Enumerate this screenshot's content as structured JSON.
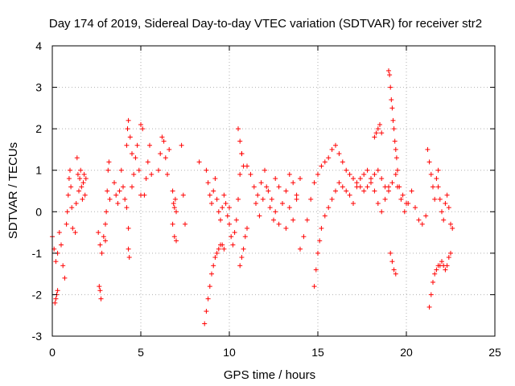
{
  "chart_data": {
    "type": "scatter",
    "title": "Day 174 of 2019, Sidereal Day-to-day VTEC variation (SDTVAR) for receiver str2",
    "xlabel": "GPS time / hours",
    "ylabel": "SDTVAR / TECUs",
    "xlim": [
      0,
      25
    ],
    "ylim": [
      -3,
      4
    ],
    "x_ticks": [
      "0",
      "5",
      "10",
      "15",
      "20",
      "25"
    ],
    "y_ticks": [
      "-3",
      "-2",
      "-1",
      "0",
      "1",
      "2",
      "3",
      "4"
    ],
    "grid": true,
    "marker": "+",
    "color": "#ff0000",
    "series": [
      {
        "name": "SDTVAR",
        "segments": [
          {
            "x": [
              0.0,
              0.1,
              0.2,
              0.3,
              0.4,
              0.5,
              0.6,
              0.7
            ],
            "y": [
              -0.6,
              -0.9,
              -1.2,
              -1.0,
              -0.5,
              -0.8,
              -1.3,
              -1.6
            ]
          },
          {
            "x": [
              0.15,
              0.2,
              0.25,
              0.3
            ],
            "y": [
              -2.2,
              -2.1,
              -2.0,
              -1.9
            ]
          },
          {
            "x": [
              0.8,
              0.85,
              0.9,
              0.95,
              1.0,
              1.05,
              1.1,
              1.15
            ],
            "y": [
              -0.3,
              0.0,
              0.4,
              0.8,
              1.0,
              0.6,
              0.1,
              -0.4
            ]
          },
          {
            "x": [
              1.3,
              1.35,
              1.4,
              1.45,
              1.5,
              1.55,
              1.6,
              1.65,
              1.7,
              1.75,
              1.8,
              1.85,
              1.9
            ],
            "y": [
              -0.5,
              0.2,
              1.3,
              0.9,
              0.5,
              0.8,
              1.0,
              0.6,
              0.3,
              0.7,
              0.9,
              0.4,
              0.8
            ]
          },
          {
            "x": [
              2.6,
              2.7,
              2.8,
              2.9,
              3.0
            ],
            "y": [
              -0.5,
              -0.8,
              -1.0,
              -0.6,
              -0.3
            ]
          },
          {
            "x": [
              2.65,
              2.7,
              2.75
            ],
            "y": [
              -1.8,
              -1.9,
              -2.1
            ]
          },
          {
            "x": [
              3.0,
              3.05,
              3.1,
              3.15,
              3.2,
              3.25
            ],
            "y": [
              -0.7,
              0.0,
              0.5,
              1.0,
              1.2,
              0.3
            ]
          },
          {
            "x": [
              3.5,
              3.6,
              3.7,
              3.8,
              3.9,
              4.0,
              4.1,
              4.2,
              4.3
            ],
            "y": [
              0.7,
              0.4,
              0.2,
              0.5,
              1.0,
              0.6,
              0.3,
              0.1,
              -0.4
            ]
          },
          {
            "x": [
              4.2,
              4.25,
              4.3,
              4.4,
              4.5
            ],
            "y": [
              1.6,
              2.0,
              2.2,
              1.8,
              1.4
            ]
          },
          {
            "x": [
              4.3,
              4.35
            ],
            "y": [
              -0.9,
              -1.1
            ]
          },
          {
            "x": [
              4.5,
              4.6,
              4.7,
              4.8,
              4.9,
              5.0
            ],
            "y": [
              0.6,
              0.9,
              1.3,
              1.6,
              1.0,
              0.4
            ]
          },
          {
            "x": [
              5.0,
              5.1
            ],
            "y": [
              2.1,
              2.0
            ]
          },
          {
            "x": [
              5.2,
              5.3,
              5.4,
              5.5,
              5.6
            ],
            "y": [
              0.4,
              0.8,
              1.2,
              1.6,
              0.9
            ]
          },
          {
            "x": [
              6.0,
              6.1,
              6.2,
              6.3,
              6.4,
              6.5,
              6.6
            ],
            "y": [
              1.0,
              1.4,
              1.8,
              1.7,
              1.3,
              0.9,
              1.5
            ]
          },
          {
            "x": [
              6.8,
              6.9,
              7.0
            ],
            "y": [
              -0.3,
              -0.6,
              -0.7
            ]
          },
          {
            "x": [
              6.8,
              6.85,
              6.9,
              6.95,
              7.0
            ],
            "y": [
              0.5,
              0.2,
              0.1,
              0.3,
              0.0
            ]
          },
          {
            "x": [
              7.3,
              7.4,
              7.5
            ],
            "y": [
              1.6,
              0.4,
              -0.3
            ]
          },
          {
            "x": [
              8.3
            ],
            "y": [
              1.2
            ]
          },
          {
            "x": [
              8.6,
              8.7,
              8.8,
              8.9,
              9.0,
              9.1,
              9.2,
              9.3,
              9.4,
              9.5,
              9.6,
              9.7
            ],
            "y": [
              -2.7,
              -2.4,
              -2.1,
              -1.8,
              -1.5,
              -1.3,
              -1.1,
              -1.0,
              -0.9,
              -0.8,
              -0.8,
              -0.9
            ]
          },
          {
            "x": [
              8.7,
              8.8,
              8.9,
              9.0,
              9.1,
              9.2,
              9.3,
              9.4,
              9.5,
              9.6,
              9.7,
              9.8,
              9.9,
              10.0
            ],
            "y": [
              1.0,
              0.7,
              0.4,
              0.2,
              0.5,
              0.8,
              0.3,
              0.0,
              -0.2,
              0.1,
              0.4,
              0.2,
              -0.1,
              0.1
            ]
          },
          {
            "x": [
              10.0,
              10.1,
              10.2,
              10.3,
              10.4,
              10.5,
              10.6,
              10.7,
              10.8
            ],
            "y": [
              -0.3,
              -0.6,
              -0.8,
              -0.5,
              -0.2,
              0.3,
              0.9,
              1.4,
              1.1
            ]
          },
          {
            "x": [
              10.5,
              10.6,
              10.7
            ],
            "y": [
              2.0,
              1.7,
              1.4
            ]
          },
          {
            "x": [
              10.6,
              10.7,
              10.8,
              10.9,
              11.0
            ],
            "y": [
              -1.3,
              -1.1,
              -0.9,
              -0.6,
              -0.4
            ]
          },
          {
            "x": [
              11.0,
              11.2,
              11.4,
              11.6,
              11.8,
              12.0,
              12.2,
              12.4,
              12.6,
              12.8,
              13.0,
              13.2,
              13.4,
              13.6,
              13.8,
              14.0
            ],
            "y": [
              1.1,
              0.9,
              0.6,
              0.4,
              0.7,
              1.0,
              0.5,
              0.3,
              0.8,
              0.6,
              0.2,
              0.5,
              0.9,
              0.7,
              0.4,
              0.8
            ]
          },
          {
            "x": [
              11.5,
              11.7,
              11.9,
              12.1,
              12.3,
              12.5
            ],
            "y": [
              0.2,
              -0.1,
              0.3,
              0.6,
              0.1,
              -0.2
            ]
          },
          {
            "x": [
              12.6,
              12.8,
              13.0,
              13.2,
              13.4,
              13.6,
              13.8
            ],
            "y": [
              0.0,
              -0.3,
              0.2,
              -0.4,
              0.1,
              -0.2,
              0.3
            ]
          },
          {
            "x": [
              14.0,
              14.2,
              14.4,
              14.6,
              14.8,
              15.0,
              15.2,
              15.4,
              15.6,
              15.8,
              16.0,
              16.2,
              16.4,
              16.6,
              16.8,
              17.0,
              17.2,
              17.4,
              17.6,
              17.8,
              18.0,
              18.2,
              18.4,
              18.6,
              18.8,
              19.0,
              19.2,
              19.4,
              19.6,
              19.8,
              20.0
            ],
            "y": [
              -0.9,
              -0.6,
              -0.2,
              0.3,
              0.7,
              0.9,
              1.1,
              1.2,
              1.3,
              1.5,
              1.6,
              1.4,
              1.2,
              1.0,
              0.9,
              0.8,
              0.7,
              0.6,
              0.5,
              0.6,
              0.7,
              0.9,
              1.0,
              0.8,
              0.6,
              0.5,
              0.7,
              0.9,
              0.6,
              0.4,
              0.2
            ]
          },
          {
            "x": [
              14.8,
              14.9,
              15.0,
              15.1,
              15.2,
              15.4,
              15.6,
              15.8,
              16.0,
              16.2,
              16.4,
              16.6,
              16.8,
              17.0,
              17.2,
              17.4,
              17.6,
              17.8,
              18.0,
              18.2,
              18.4,
              18.6,
              18.8,
              19.0
            ],
            "y": [
              -1.8,
              -1.4,
              -1.0,
              -0.7,
              -0.4,
              -0.1,
              0.1,
              0.3,
              0.5,
              0.7,
              0.6,
              0.5,
              0.4,
              0.2,
              0.6,
              0.8,
              0.9,
              1.0,
              0.8,
              0.5,
              0.2,
              0.0,
              0.3,
              0.6
            ]
          },
          {
            "x": [
              18.2,
              18.3,
              18.4,
              18.5,
              18.6
            ],
            "y": [
              1.8,
              1.9,
              2.0,
              2.1,
              1.9
            ]
          },
          {
            "x": [
              19.0,
              19.05,
              19.1,
              19.15,
              19.2,
              19.25,
              19.3,
              19.35,
              19.4,
              19.45,
              19.5
            ],
            "y": [
              3.4,
              3.3,
              3.0,
              2.7,
              2.5,
              2.2,
              2.0,
              1.7,
              1.5,
              1.3,
              1.0
            ]
          },
          {
            "x": [
              19.1,
              19.2,
              19.3,
              19.4
            ],
            "y": [
              -1.0,
              -1.2,
              -1.4,
              -1.5
            ]
          },
          {
            "x": [
              19.5,
              19.7,
              19.9,
              20.1,
              20.3,
              20.5,
              20.7,
              20.9,
              21.1
            ],
            "y": [
              0.6,
              0.3,
              0.0,
              0.2,
              0.5,
              0.1,
              -0.2,
              -0.3,
              -0.1
            ]
          },
          {
            "x": [
              21.2,
              21.3,
              21.4,
              21.5,
              21.6,
              21.7,
              21.8
            ],
            "y": [
              1.5,
              1.2,
              0.9,
              0.6,
              0.3,
              0.8,
              1.0
            ]
          },
          {
            "x": [
              21.3,
              21.4,
              21.5,
              21.6,
              21.7,
              21.8,
              21.9,
              22.0,
              22.1,
              22.2,
              22.3,
              22.4,
              22.5
            ],
            "y": [
              -2.3,
              -2.0,
              -1.7,
              -1.5,
              -1.4,
              -1.3,
              -1.3,
              -1.2,
              -1.3,
              -1.4,
              -1.3,
              -1.1,
              -1.0
            ]
          },
          {
            "x": [
              21.8,
              21.9,
              22.0,
              22.1,
              22.2,
              22.3,
              22.4,
              22.5,
              22.6
            ],
            "y": [
              0.6,
              0.3,
              0.0,
              -0.2,
              0.2,
              0.4,
              0.1,
              -0.3,
              -0.4
            ]
          }
        ]
      }
    ]
  }
}
